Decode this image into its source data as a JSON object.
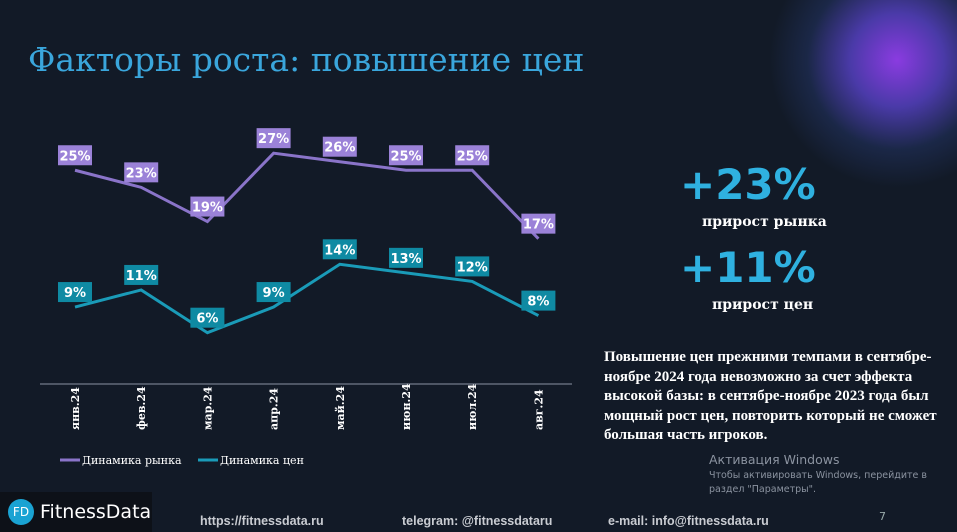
{
  "title": "Факторы роста: повышение цен",
  "kpis": [
    {
      "value": "+23%",
      "label": "прирост рынка"
    },
    {
      "value": "+11%",
      "label": "прирост цен"
    }
  ],
  "description": "Повышение цен прежними темпами в сентябре-ноябре 2024 года невозможно за счет эффекта высокой базы: в сентябре-ноябре 2023 года был мощный рост цен, повторить который не сможет большая часть игроков.",
  "watermark": {
    "title": "Активация Windows",
    "text": "Чтобы активировать Windows, перейдите в раздел \"Параметры\"."
  },
  "footer": {
    "logo_mark": "FD",
    "logo_text": "FitnessData",
    "site": "https://fitnessdata.ru",
    "telegram": "telegram: @fitnessdataru",
    "email": "e-mail: info@fitnessdata.ru",
    "page": "7"
  },
  "chart_data": {
    "type": "line",
    "categories": [
      "янв.24",
      "фев.24",
      "мар.24",
      "апр.24",
      "май.24",
      "июн.24",
      "июл.24",
      "авг.24"
    ],
    "series": [
      {
        "name": "Динамика рынка",
        "values": [
          25,
          23,
          19,
          27,
          26,
          25,
          25,
          17
        ],
        "color": "#8a74c9",
        "label_bg": "#9b82d8"
      },
      {
        "name": "Динамика цен",
        "values": [
          9,
          11,
          6,
          9,
          14,
          13,
          12,
          8
        ],
        "color": "#1a9bb8",
        "label_bg": "#0f8aa3"
      }
    ],
    "value_suffix": "%",
    "legend": "bottom-left",
    "grid": false
  }
}
